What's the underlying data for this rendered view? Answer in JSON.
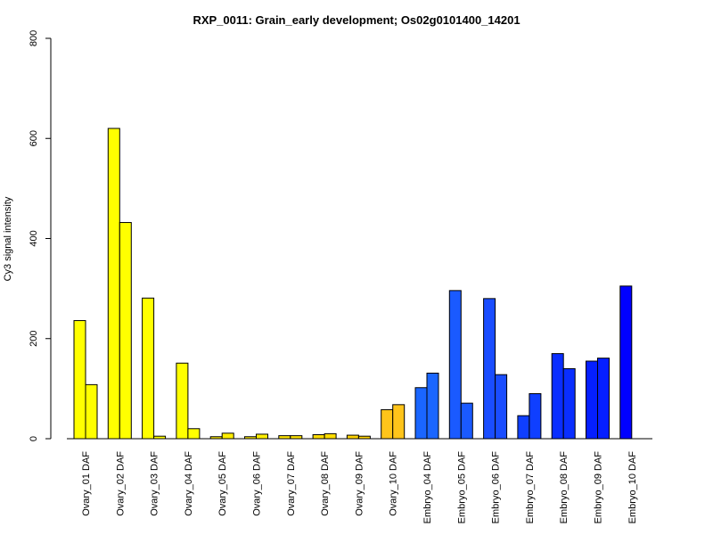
{
  "chart_data": {
    "type": "bar",
    "title": "RXP_0011: Grain_early development; Os02g0101400_14201",
    "xlabel": "",
    "ylabel": "Cy3 signal intensity",
    "ylim": [
      0,
      800
    ],
    "yticks": [
      "0",
      "200",
      "400",
      "600",
      "800"
    ],
    "grid": false,
    "legend": "none",
    "categories": [
      "Ovary_01 DAF",
      "Ovary_02 DAF",
      "Ovary_03 DAF",
      "Ovary_04 DAF",
      "Ovary_05 DAF",
      "Ovary_06 DAF",
      "Ovary_07 DAF",
      "Ovary_08 DAF",
      "Ovary_09 DAF",
      "Ovary_10 DAF",
      "Embryo_04 DAF",
      "Embryo_05 DAF",
      "Embryo_06 DAF",
      "Embryo_07 DAF",
      "Embryo_08 DAF",
      "Embryo_09 DAF",
      "Embryo_10 DAF"
    ],
    "colors": [
      "#ffff00",
      "#ffff00",
      "#ffff00",
      "#ffff00",
      "#ffee00",
      "#ffee00",
      "#ffe400",
      "#ffdd00",
      "#ffd400",
      "#ffc41a",
      "#1a66ff",
      "#1a5aff",
      "#1a4dff",
      "#0f3fff",
      "#0a2eff",
      "#051fff",
      "#0000ff"
    ],
    "series": [
      {
        "values": [
          236,
          620,
          281,
          151,
          4,
          4,
          6,
          8,
          7,
          58,
          102,
          296,
          280,
          46,
          170,
          155,
          305
        ]
      },
      {
        "values": [
          108,
          432,
          5,
          20,
          11,
          9,
          6,
          10,
          5,
          68,
          131,
          71,
          128,
          90,
          140,
          161,
          0
        ]
      }
    ]
  }
}
